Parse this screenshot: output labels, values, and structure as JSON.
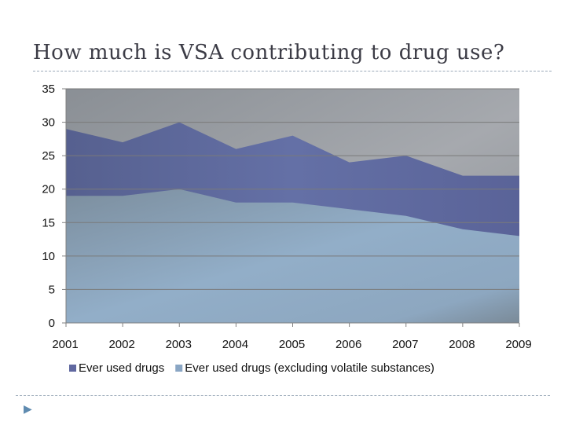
{
  "slide": {
    "title": "How much is VSA contributing to drug use?",
    "bullet_icon": "triangle-bullet-icon"
  },
  "colors": {
    "series_total": "#6068a0",
    "series_excl": "#8aa6c4",
    "gridline": "#7a7a7a",
    "rule": "#9aa9b8"
  },
  "chart_data": {
    "type": "area",
    "title": "",
    "xlabel": "",
    "ylabel": "",
    "categories": [
      "2001",
      "2002",
      "2003",
      "2004",
      "2005",
      "2006",
      "2007",
      "2008",
      "2009"
    ],
    "ylim": [
      0,
      35
    ],
    "yticks": [
      0,
      5,
      10,
      15,
      20,
      25,
      30,
      35
    ],
    "grid": true,
    "legend_position": "bottom",
    "series": [
      {
        "name": "Ever used drugs",
        "values": [
          29,
          27,
          30,
          26,
          28,
          24,
          25,
          22,
          22
        ]
      },
      {
        "name": "Ever used drugs (excluding volatile substances)",
        "values": [
          19,
          19,
          20,
          18,
          18,
          17,
          16,
          14,
          13
        ]
      }
    ]
  }
}
